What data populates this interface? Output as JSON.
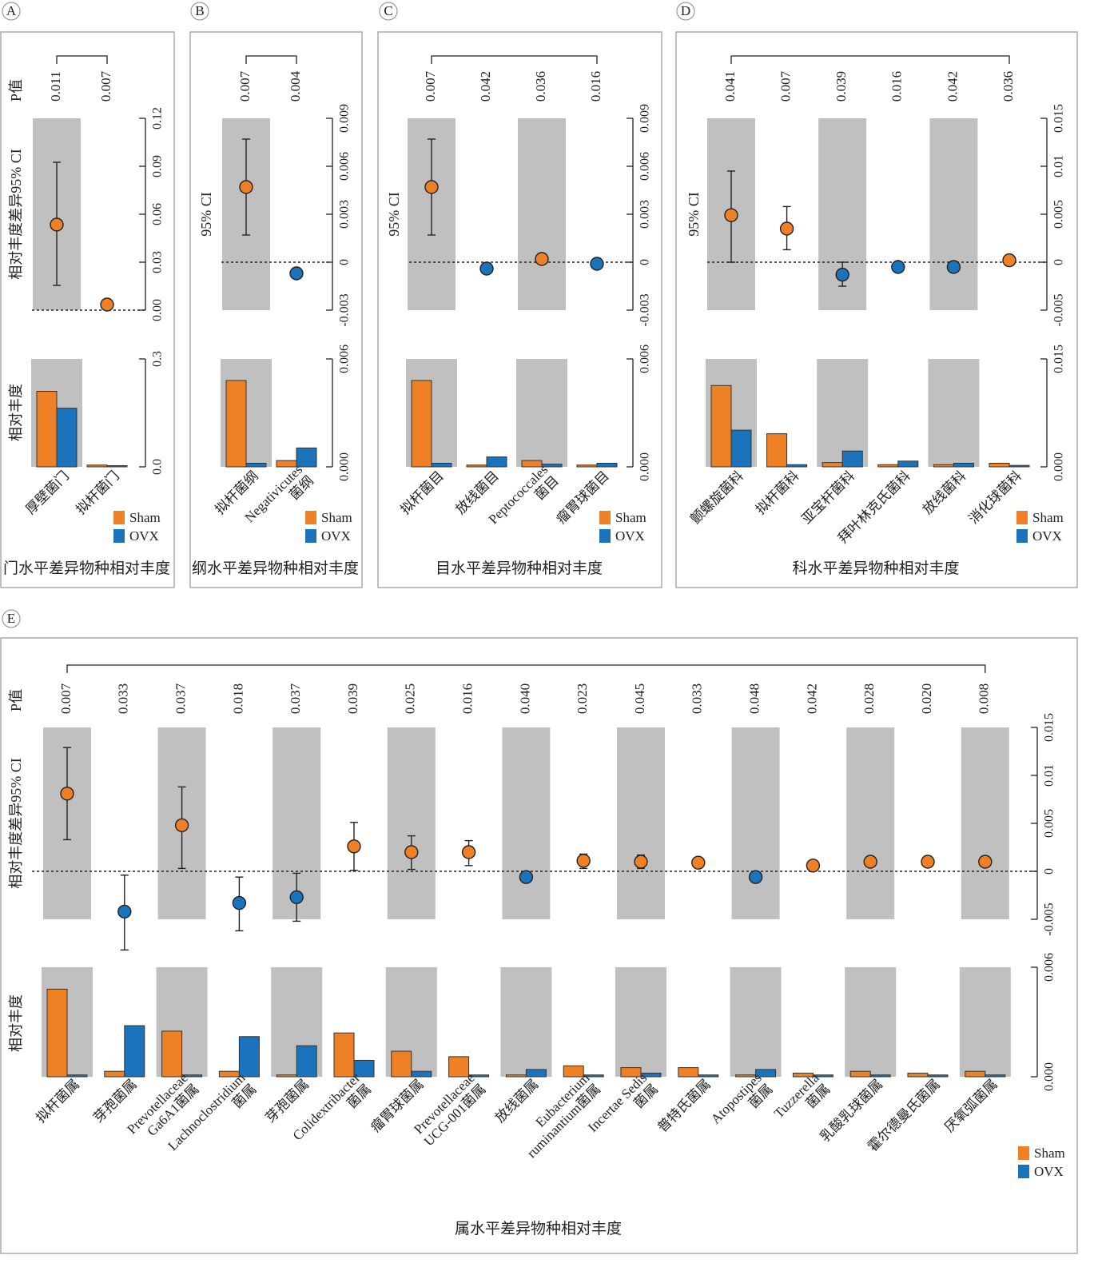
{
  "colors": {
    "sham": "#ee8026",
    "ovx": "#1a73bb",
    "shade": "#c0c0c0",
    "frame": "#aaaaaa"
  },
  "legend": {
    "sham": "Sham",
    "ovx": "OVX"
  },
  "chart_data": [
    {
      "letter": "A",
      "type": "bar",
      "title": "门水平差异物种相对丰度",
      "p_label": "P值",
      "ci_label": "相对丰度差异95% CI",
      "abund_label": "相对丰度",
      "categories": [
        "厚壁菌门",
        "拟杆菌门"
      ],
      "p_values": [
        "0.011",
        "0.007"
      ],
      "ci": [
        {
          "mean": 0.0535,
          "low": 0.0155,
          "high": 0.0925
        },
        {
          "mean": 0.0035,
          "low": 0.0035,
          "high": 0.0035
        }
      ],
      "ci_color": [
        "sham",
        "sham"
      ],
      "ci_ylim": [
        0,
        0.12
      ],
      "ci_ticks": [
        "0.00",
        "0.03",
        "0.06",
        "0.09",
        "0.12"
      ],
      "abund_ylim": [
        0,
        0.3
      ],
      "abund_ticks": [
        "0.0",
        "0.3"
      ],
      "series": [
        {
          "name": "Sham",
          "values": [
            0.21,
            0.005
          ]
        },
        {
          "name": "OVX",
          "values": [
            0.163,
            0.002
          ]
        }
      ]
    },
    {
      "letter": "B",
      "type": "bar",
      "title": "纲水平差异物种相对丰度",
      "p_label": "",
      "ci_label": "95% CI",
      "abund_label": "",
      "categories": [
        "拟杆菌纲",
        "Negativicutes菌纲"
      ],
      "p_values": [
        "0.007",
        "0.004"
      ],
      "ci": [
        {
          "mean": 0.0047,
          "low": 0.0017,
          "high": 0.0077
        },
        {
          "mean": -0.0007,
          "low": -0.0007,
          "high": -0.0007
        }
      ],
      "ci_color": [
        "sham",
        "ovx"
      ],
      "ci_ylim": [
        -0.003,
        0.009
      ],
      "ci_ticks": [
        "-0.003",
        "0",
        "0.003",
        "0.006",
        "0.009"
      ],
      "abund_ylim": [
        0,
        0.006
      ],
      "abund_ticks": [
        "0.000",
        "0.006"
      ],
      "series": [
        {
          "name": "Sham",
          "values": [
            0.0048,
            0.00035
          ]
        },
        {
          "name": "OVX",
          "values": [
            0.0002,
            0.00105
          ]
        }
      ]
    },
    {
      "letter": "C",
      "type": "bar",
      "title": "目水平差异物种相对丰度",
      "p_label": "",
      "ci_label": "95% CI",
      "abund_label": "",
      "categories": [
        "拟杆菌目",
        "放线菌目",
        "Peptococcales菌目",
        "瘤胃球菌目"
      ],
      "p_values": [
        "0.007",
        "0.042",
        "0.036",
        "0.016"
      ],
      "ci": [
        {
          "mean": 0.0047,
          "low": 0.0017,
          "high": 0.0077
        },
        {
          "mean": -0.0004,
          "low": -0.0004,
          "high": -0.0004
        },
        {
          "mean": 0.0002,
          "low": 0.0002,
          "high": 0.0002
        },
        {
          "mean": -0.0001,
          "low": -0.0001,
          "high": -0.0001
        }
      ],
      "ci_color": [
        "sham",
        "ovx",
        "sham",
        "ovx"
      ],
      "ci_ylim": [
        -0.003,
        0.009
      ],
      "ci_ticks": [
        "-0.003",
        "0",
        "0.003",
        "0.006",
        "0.009"
      ],
      "abund_ylim": [
        0,
        0.006
      ],
      "abund_ticks": [
        "0.000",
        "0.006"
      ],
      "series": [
        {
          "name": "Sham",
          "values": [
            0.0048,
            0.0001,
            0.00035,
            0.0001
          ]
        },
        {
          "name": "OVX",
          "values": [
            0.0002,
            0.00055,
            0.00015,
            0.0002
          ]
        }
      ]
    },
    {
      "letter": "D",
      "type": "bar",
      "title": "科水平差异物种相对丰度",
      "p_label": "",
      "ci_label": "95% CI",
      "abund_label": "",
      "categories": [
        "颤螺旋菌科",
        "拟杆菌科",
        "亚宝杆菌科",
        "拜叶林克氏菌科",
        "放线菌科",
        "消化球菌科"
      ],
      "p_values": [
        "0.041",
        "0.007",
        "0.039",
        "0.016",
        "0.042",
        "0.036"
      ],
      "ci": [
        {
          "mean": 0.0049,
          "low": 0.0,
          "high": 0.0095
        },
        {
          "mean": 0.0035,
          "low": 0.0013,
          "high": 0.0058
        },
        {
          "mean": -0.0013,
          "low": -0.0025,
          "high": 0.0
        },
        {
          "mean": -0.0005,
          "low": -0.0005,
          "high": -0.0005
        },
        {
          "mean": -0.0005,
          "low": -0.0005,
          "high": -0.0005
        },
        {
          "mean": 0.0002,
          "low": 0.0002,
          "high": 0.0002
        }
      ],
      "ci_color": [
        "sham",
        "sham",
        "ovx",
        "ovx",
        "ovx",
        "sham"
      ],
      "ci_ylim": [
        -0.005,
        0.015
      ],
      "ci_ticks": [
        "-0.005",
        "0",
        "0.005",
        "0.01",
        "0.015"
      ],
      "abund_ylim": [
        0,
        0.015
      ],
      "abund_ticks": [
        "0.000",
        "0.015"
      ],
      "series": [
        {
          "name": "Sham",
          "values": [
            0.0113,
            0.0046,
            0.0006,
            0.0003,
            0.0003,
            0.0005
          ]
        },
        {
          "name": "OVX",
          "values": [
            0.0051,
            0.0003,
            0.0022,
            0.0008,
            0.0005,
            0.0002
          ]
        }
      ]
    },
    {
      "letter": "E",
      "type": "bar",
      "title": "属水平差异物种相对丰度",
      "p_label": "P值",
      "ci_label": "相对丰度差异95% CI",
      "abund_label": "相对丰度",
      "categories": [
        "拟杆菌属",
        "芽孢菌属",
        "Prevotellaceae Ga6A1菌属",
        "Lachnoclostridium菌属",
        "芽孢菌属",
        "Colidextribacter菌属",
        "瘤胃球菌属",
        "Prevotellaceae UCG-001菌属",
        "放线菌属",
        "Eubacterium ruminantium菌属",
        "Incertae Sedis菌属",
        "普特氏菌属",
        "Atopostipes菌属",
        "Tuzzerella菌属",
        "乳酸乳球菌属",
        "霍尔德曼氏菌属",
        "厌氧弧菌属"
      ],
      "p_values": [
        "0.007",
        "0.033",
        "0.037",
        "0.018",
        "0.037",
        "0.039",
        "0.025",
        "0.016",
        "0.040",
        "0.023",
        "0.045",
        "0.033",
        "0.048",
        "0.042",
        "0.028",
        "0.020",
        "0.008"
      ],
      "ci": [
        {
          "mean": 0.0081,
          "low": 0.0033,
          "high": 0.0129
        },
        {
          "mean": -0.0042,
          "low": -0.0082,
          "high": -0.0004
        },
        {
          "mean": 0.0048,
          "low": 0.0003,
          "high": 0.0088
        },
        {
          "mean": -0.0033,
          "low": -0.0062,
          "high": -0.0006
        },
        {
          "mean": -0.0027,
          "low": -0.0052,
          "high": -0.0002
        },
        {
          "mean": 0.0026,
          "low": 0.0001,
          "high": 0.0051
        },
        {
          "mean": 0.002,
          "low": 0.0002,
          "high": 0.0037
        },
        {
          "mean": 0.002,
          "low": 0.0006,
          "high": 0.0032
        },
        {
          "mean": -0.0006,
          "low": -0.0006,
          "high": -0.0006
        },
        {
          "mean": 0.0011,
          "low": 0.0003,
          "high": 0.0018
        },
        {
          "mean": 0.001,
          "low": 0.0003,
          "high": 0.0017
        },
        {
          "mean": 0.0009,
          "low": 0.0009,
          "high": 0.0009
        },
        {
          "mean": -0.0006,
          "low": -0.0006,
          "high": -0.0006
        },
        {
          "mean": 0.0006,
          "low": 0.0006,
          "high": 0.0006
        },
        {
          "mean": 0.001,
          "low": 0.001,
          "high": 0.001
        },
        {
          "mean": 0.001,
          "low": 0.001,
          "high": 0.001
        },
        {
          "mean": 0.001,
          "low": 0.001,
          "high": 0.001
        }
      ],
      "ci_color": [
        "sham",
        "ovx",
        "sham",
        "ovx",
        "ovx",
        "sham",
        "sham",
        "sham",
        "ovx",
        "sham",
        "sham",
        "sham",
        "ovx",
        "sham",
        "sham",
        "sham",
        "sham"
      ],
      "ci_ylim": [
        -0.005,
        0.015
      ],
      "ci_ticks": [
        "-0.005",
        "0",
        "0.005",
        "0.01",
        "0.015"
      ],
      "abund_ylim": [
        0,
        0.006
      ],
      "abund_ticks": [
        "0.000",
        "0.006"
      ],
      "series": [
        {
          "name": "Sham",
          "values": [
            0.0048,
            0.0003,
            0.0025,
            0.0003,
            0.0001,
            0.0024,
            0.0014,
            0.0011,
            0.0001,
            0.0006,
            0.0005,
            0.0005,
            0.0001,
            0.0002,
            0.0003,
            0.0002,
            0.0003
          ]
        },
        {
          "name": "OVX",
          "values": [
            0.0001,
            0.0028,
            0.0001,
            0.0022,
            0.0017,
            0.0009,
            0.0003,
            0.0001,
            0.0004,
            0.0001,
            0.0002,
            0.0001,
            0.0004,
            0.0001,
            0.0001,
            0.0001,
            0.0001
          ]
        }
      ]
    }
  ]
}
